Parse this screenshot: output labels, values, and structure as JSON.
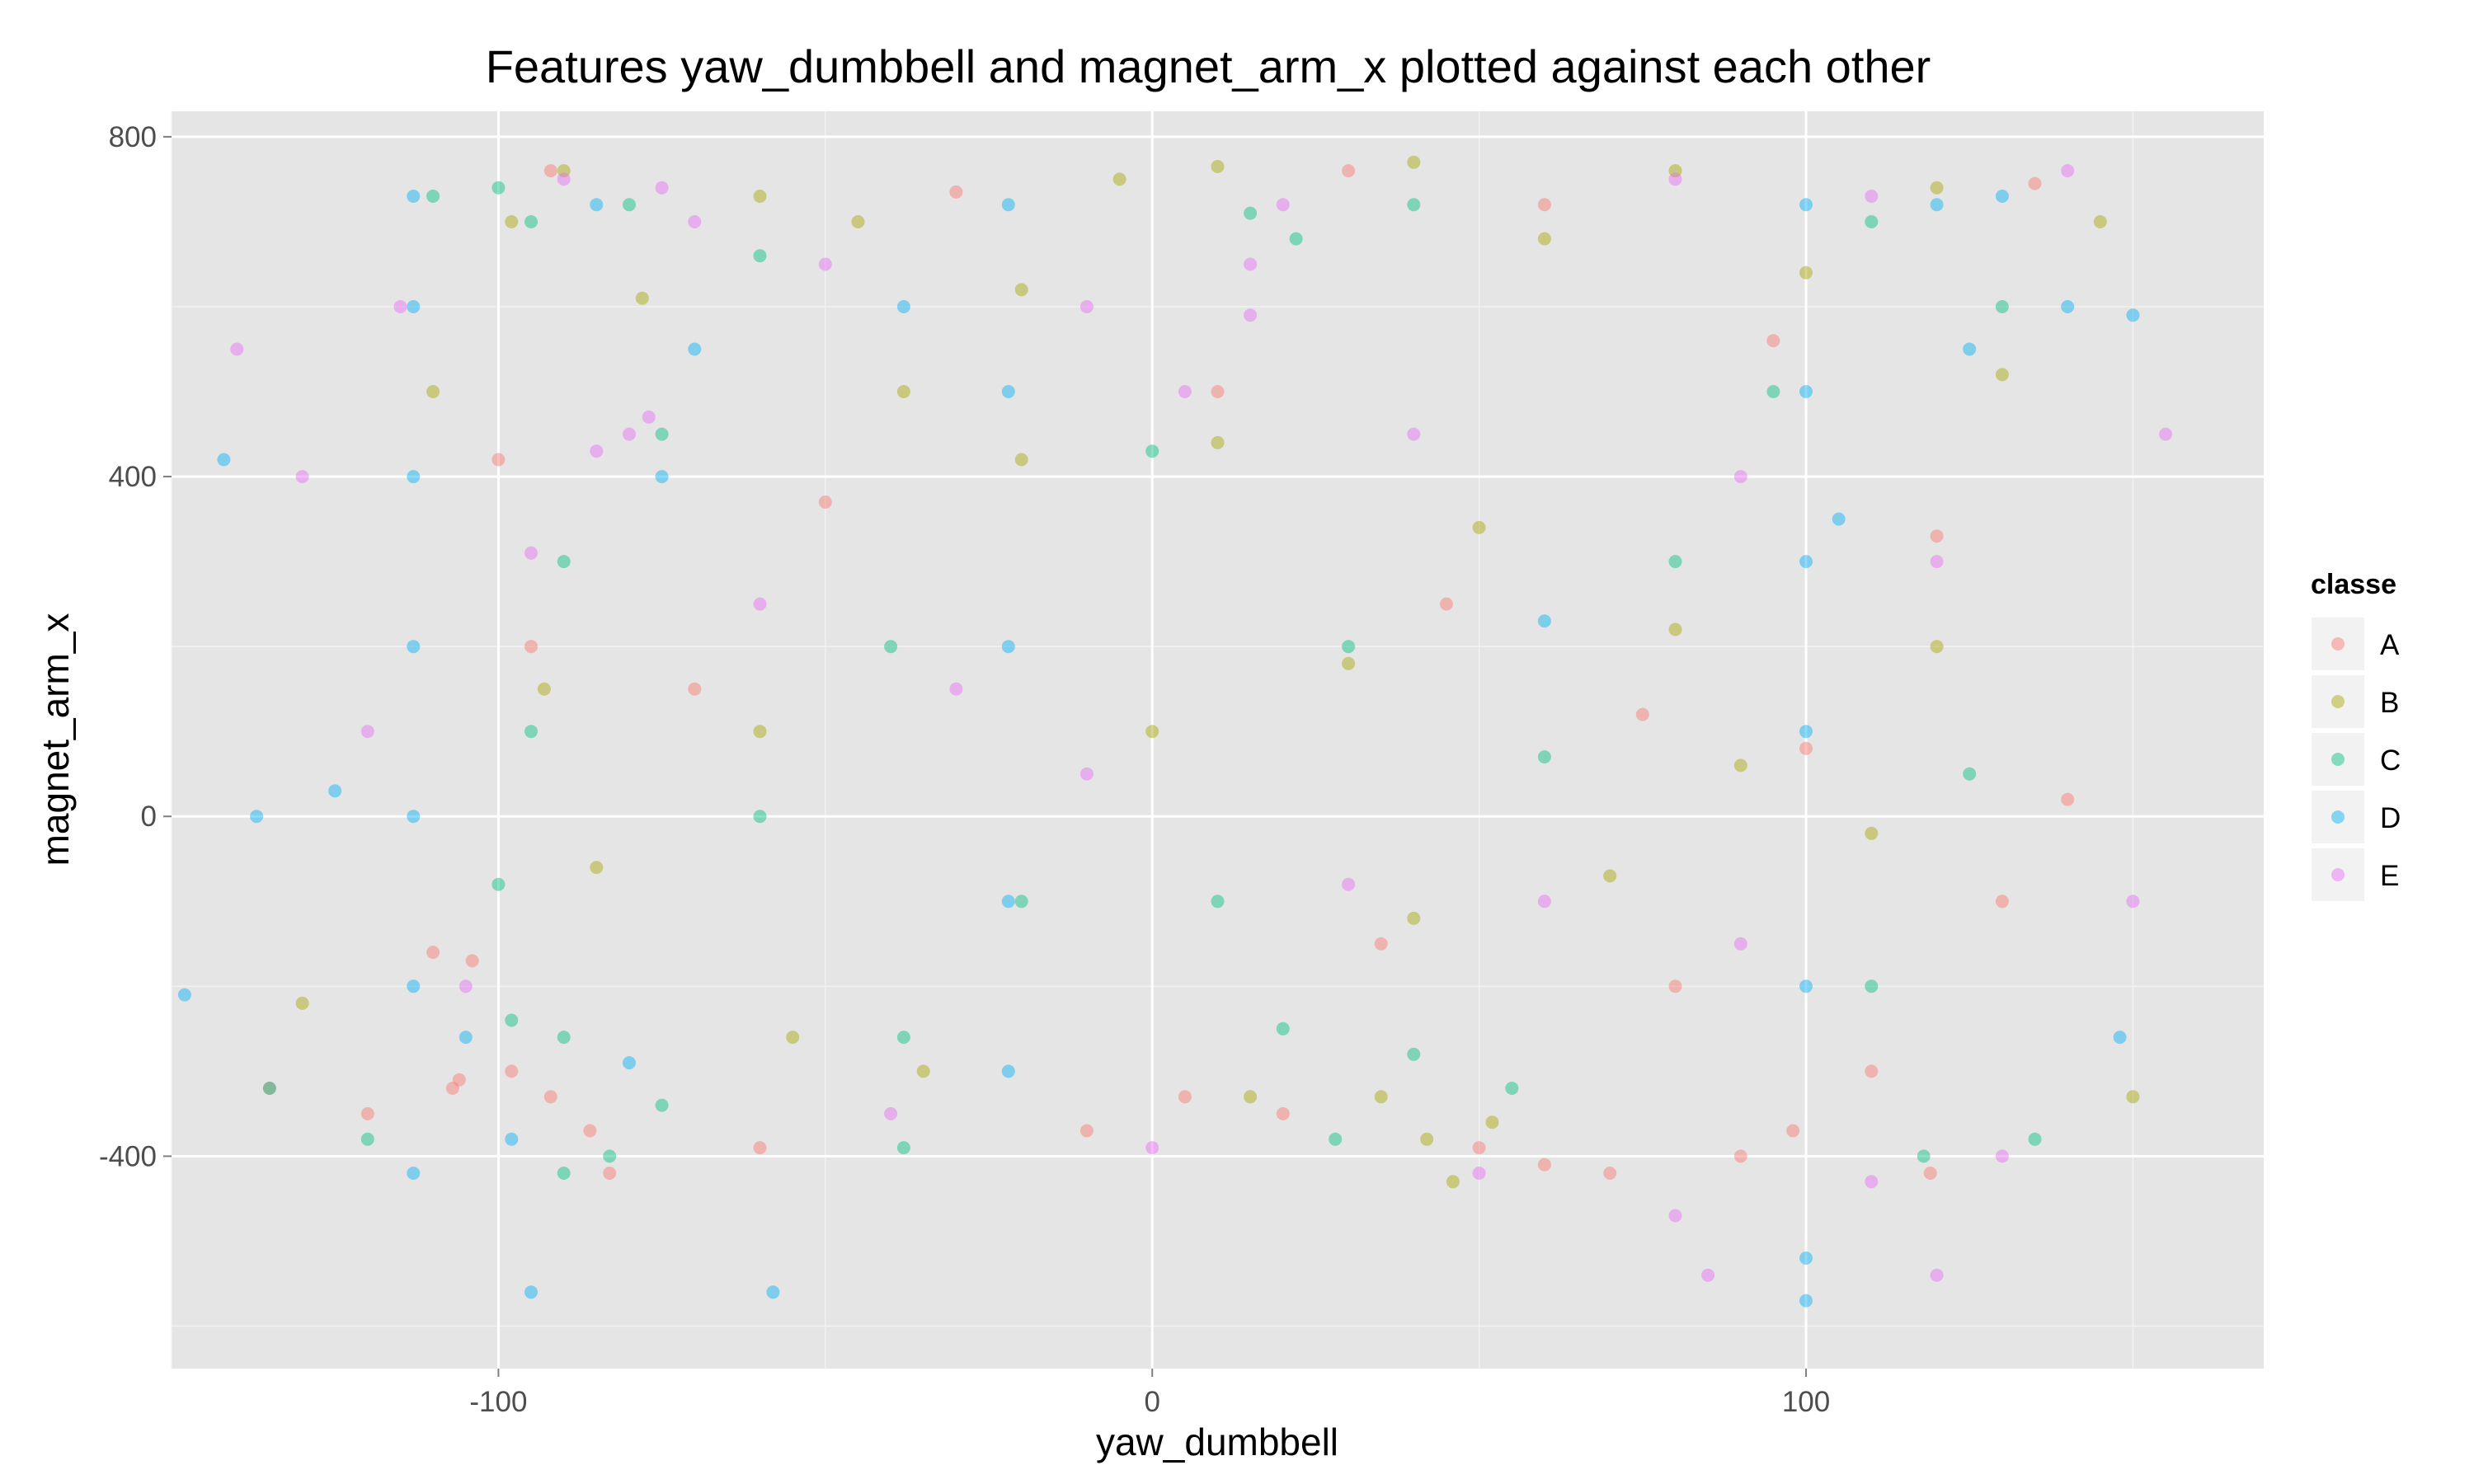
{
  "chart_data": {
    "type": "scatter",
    "title": "Features  yaw_dumbbell  and  magnet_arm_x  plotted against each other",
    "xlabel": "yaw_dumbbell",
    "ylabel": "magnet_arm_x",
    "xlim": [
      -150,
      170
    ],
    "ylim": [
      -650,
      830
    ],
    "x_ticks": [
      {
        "value": -100,
        "label": "-100"
      },
      {
        "value": 0,
        "label": "0"
      },
      {
        "value": 100,
        "label": "100"
      }
    ],
    "y_ticks": [
      {
        "value": -400,
        "label": "-400"
      },
      {
        "value": 0,
        "label": "0"
      },
      {
        "value": 400,
        "label": "400"
      },
      {
        "value": 800,
        "label": "800"
      }
    ],
    "grid": true,
    "legend": {
      "title": "classe",
      "placement": "right",
      "entries": [
        {
          "name": "A",
          "color": "#F8766D"
        },
        {
          "name": "B",
          "color": "#A3A500"
        },
        {
          "name": "C",
          "color": "#00BF7D"
        },
        {
          "name": "D",
          "color": "#00B0F6"
        },
        {
          "name": "E",
          "color": "#E76BF3"
        }
      ]
    },
    "series": [
      {
        "name": "A",
        "points": [
          [
            -104,
            -170
          ],
          [
            -106,
            -310
          ],
          [
            -92,
            -330
          ],
          [
            -83,
            -420
          ],
          [
            -107,
            -320
          ],
          [
            -98,
            -300
          ],
          [
            -110,
            -160
          ],
          [
            -86,
            -370
          ],
          [
            -10,
            -370
          ],
          [
            20,
            -350
          ],
          [
            60,
            -410
          ],
          [
            90,
            -400
          ],
          [
            98,
            -370
          ],
          [
            119,
            -420
          ],
          [
            -95,
            200
          ],
          [
            -100,
            420
          ],
          [
            -92,
            760
          ],
          [
            -30,
            735
          ],
          [
            30,
            760
          ],
          [
            60,
            720
          ],
          [
            45,
            250
          ],
          [
            75,
            120
          ],
          [
            100,
            80
          ],
          [
            120,
            330
          ],
          [
            95,
            560
          ],
          [
            135,
            745
          ],
          [
            140,
            20
          ],
          [
            -70,
            150
          ],
          [
            -50,
            370
          ],
          [
            10,
            500
          ],
          [
            35,
            -150
          ],
          [
            80,
            -200
          ],
          [
            5,
            -330
          ],
          [
            50,
            -390
          ],
          [
            110,
            -300
          ],
          [
            -120,
            -350
          ],
          [
            -135,
            -320
          ],
          [
            70,
            -420
          ],
          [
            -60,
            -390
          ],
          [
            130,
            -100
          ]
        ]
      },
      {
        "name": "B",
        "points": [
          [
            -90,
            760
          ],
          [
            -60,
            730
          ],
          [
            -45,
            700
          ],
          [
            10,
            765
          ],
          [
            -5,
            750
          ],
          [
            40,
            770
          ],
          [
            80,
            760
          ],
          [
            120,
            740
          ],
          [
            -98,
            700
          ],
          [
            -78,
            610
          ],
          [
            -38,
            500
          ],
          [
            -20,
            420
          ],
          [
            10,
            440
          ],
          [
            50,
            340
          ],
          [
            80,
            220
          ],
          [
            90,
            60
          ],
          [
            70,
            -70
          ],
          [
            40,
            -120
          ],
          [
            35,
            -330
          ],
          [
            42,
            -380
          ],
          [
            46,
            -430
          ],
          [
            52,
            -360
          ],
          [
            15,
            -330
          ],
          [
            -35,
            -300
          ],
          [
            -55,
            -260
          ],
          [
            -85,
            -60
          ],
          [
            -93,
            150
          ],
          [
            -60,
            100
          ],
          [
            0,
            100
          ],
          [
            30,
            180
          ],
          [
            110,
            -20
          ],
          [
            120,
            200
          ],
          [
            130,
            520
          ],
          [
            145,
            700
          ],
          [
            150,
            -330
          ],
          [
            -130,
            -220
          ],
          [
            -110,
            500
          ],
          [
            60,
            680
          ],
          [
            -20,
            620
          ],
          [
            100,
            640
          ]
        ]
      },
      {
        "name": "C",
        "points": [
          [
            -100,
            740
          ],
          [
            -95,
            700
          ],
          [
            -80,
            720
          ],
          [
            -60,
            660
          ],
          [
            15,
            710
          ],
          [
            22,
            680
          ],
          [
            40,
            720
          ],
          [
            110,
            700
          ],
          [
            130,
            600
          ],
          [
            -110,
            730
          ],
          [
            -90,
            300
          ],
          [
            -95,
            100
          ],
          [
            -100,
            -80
          ],
          [
            -98,
            -240
          ],
          [
            -90,
            -260
          ],
          [
            -83,
            -400
          ],
          [
            -75,
            -340
          ],
          [
            -90,
            -420
          ],
          [
            -38,
            -390
          ],
          [
            -38,
            -260
          ],
          [
            20,
            -250
          ],
          [
            28,
            -380
          ],
          [
            40,
            -280
          ],
          [
            55,
            -320
          ],
          [
            30,
            200
          ],
          [
            60,
            70
          ],
          [
            80,
            300
          ],
          [
            -60,
            0
          ],
          [
            -20,
            -100
          ],
          [
            10,
            -100
          ],
          [
            -40,
            200
          ],
          [
            110,
            -200
          ],
          [
            125,
            50
          ],
          [
            135,
            -380
          ],
          [
            118,
            -400
          ],
          [
            -120,
            -380
          ],
          [
            -135,
            -320
          ],
          [
            0,
            430
          ],
          [
            95,
            500
          ],
          [
            -75,
            450
          ]
        ]
      },
      {
        "name": "D",
        "points": [
          [
            -113,
            730
          ],
          [
            -113,
            600
          ],
          [
            -113,
            400
          ],
          [
            -113,
            200
          ],
          [
            -113,
            0
          ],
          [
            -113,
            -200
          ],
          [
            -113,
            -420
          ],
          [
            -80,
            -290
          ],
          [
            -98,
            -380
          ],
          [
            -105,
            -260
          ],
          [
            -75,
            400
          ],
          [
            -70,
            550
          ],
          [
            -85,
            720
          ],
          [
            -22,
            720
          ],
          [
            -22,
            500
          ],
          [
            -22,
            200
          ],
          [
            -22,
            -100
          ],
          [
            -22,
            -300
          ],
          [
            -38,
            600
          ],
          [
            100,
            720
          ],
          [
            100,
            500
          ],
          [
            100,
            300
          ],
          [
            100,
            100
          ],
          [
            100,
            -200
          ],
          [
            100,
            -520
          ],
          [
            100,
            -570
          ],
          [
            120,
            720
          ],
          [
            130,
            730
          ],
          [
            125,
            550
          ],
          [
            140,
            600
          ],
          [
            105,
            350
          ],
          [
            60,
            230
          ],
          [
            -148,
            -210
          ],
          [
            -137,
            0
          ],
          [
            -142,
            420
          ],
          [
            -125,
            30
          ],
          [
            -95,
            -560
          ],
          [
            -58,
            -560
          ],
          [
            150,
            590
          ],
          [
            148,
            -260
          ]
        ]
      },
      {
        "name": "E",
        "points": [
          [
            -80,
            450
          ],
          [
            -85,
            430
          ],
          [
            -77,
            470
          ],
          [
            -70,
            700
          ],
          [
            -75,
            740
          ],
          [
            -90,
            750
          ],
          [
            -95,
            310
          ],
          [
            15,
            650
          ],
          [
            15,
            590
          ],
          [
            20,
            720
          ],
          [
            80,
            750
          ],
          [
            110,
            730
          ],
          [
            140,
            760
          ],
          [
            -50,
            650
          ],
          [
            -10,
            600
          ],
          [
            5,
            500
          ],
          [
            40,
            450
          ],
          [
            90,
            400
          ],
          [
            120,
            300
          ],
          [
            -60,
            250
          ],
          [
            -30,
            150
          ],
          [
            -10,
            50
          ],
          [
            30,
            -80
          ],
          [
            60,
            -100
          ],
          [
            90,
            -150
          ],
          [
            -40,
            -350
          ],
          [
            0,
            -390
          ],
          [
            50,
            -420
          ],
          [
            80,
            -470
          ],
          [
            110,
            -430
          ],
          [
            130,
            -400
          ],
          [
            120,
            -540
          ],
          [
            85,
            -540
          ],
          [
            -115,
            600
          ],
          [
            -130,
            400
          ],
          [
            -120,
            100
          ],
          [
            -105,
            -200
          ],
          [
            -140,
            550
          ],
          [
            155,
            450
          ],
          [
            150,
            -100
          ]
        ]
      }
    ]
  }
}
